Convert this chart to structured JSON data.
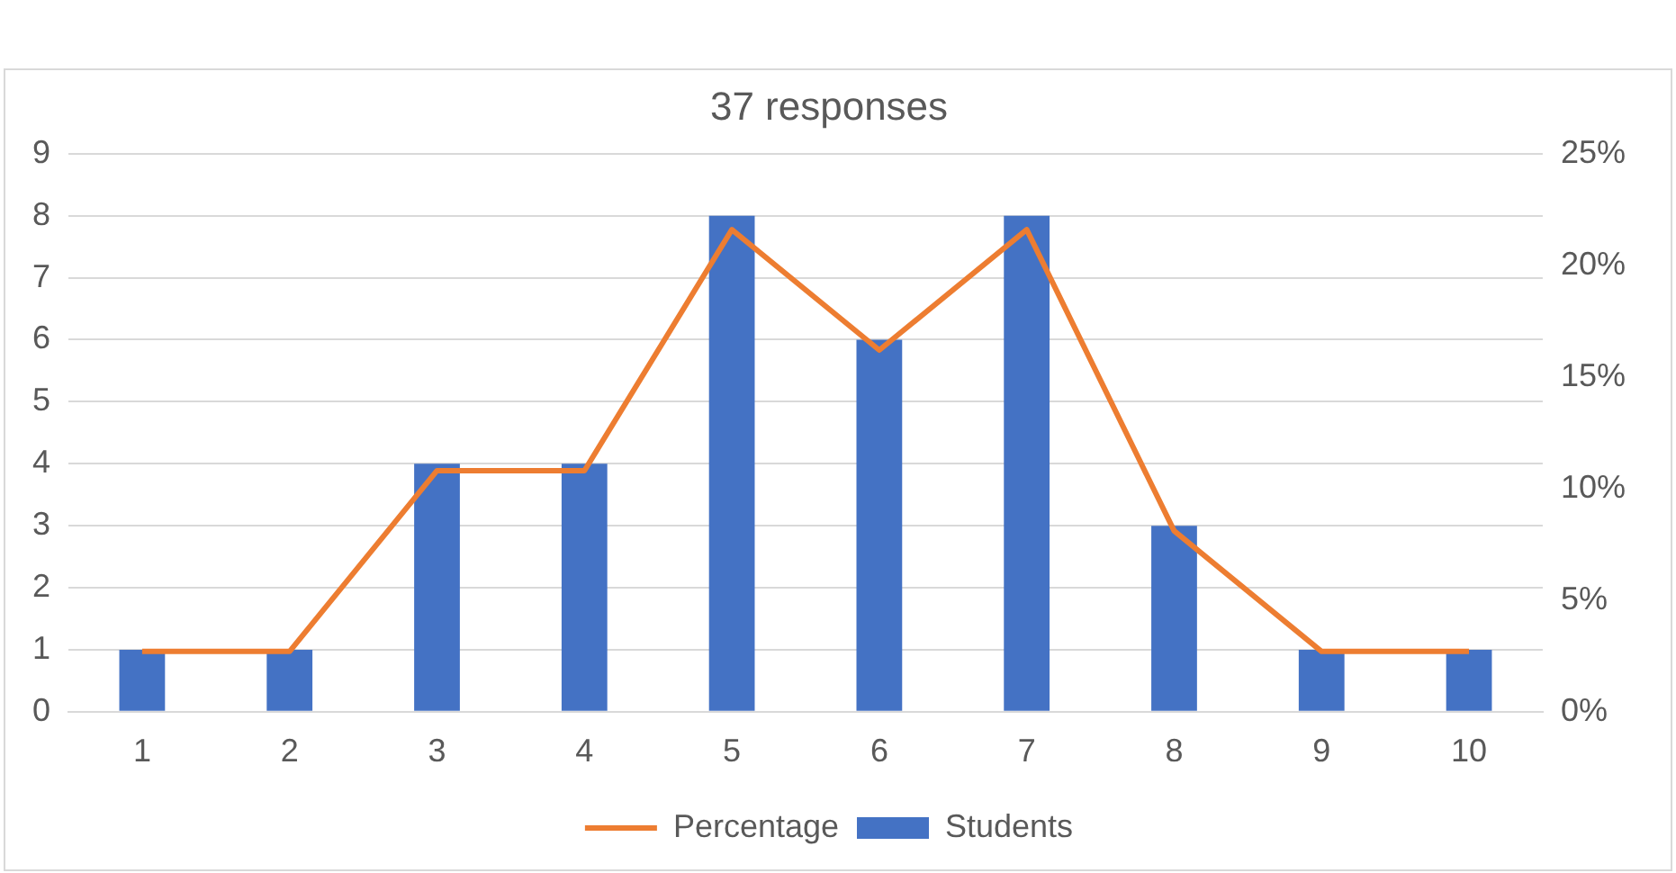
{
  "chart_data": {
    "type": "bar",
    "title": "37 responses",
    "categories": [
      "1",
      "2",
      "3",
      "4",
      "5",
      "6",
      "7",
      "8",
      "9",
      "10"
    ],
    "series": [
      {
        "name": "Students",
        "color": "#4472c4",
        "values": [
          1,
          1,
          4,
          4,
          8,
          6,
          8,
          3,
          1,
          1
        ]
      },
      {
        "name": "Percentage",
        "type": "line",
        "axis": "y2",
        "color": "#ed7d31",
        "values": [
          2.7,
          2.7,
          10.8,
          10.8,
          21.6,
          16.2,
          21.6,
          8.1,
          2.7,
          2.7
        ]
      }
    ],
    "ylim": [
      0,
      9
    ],
    "yticks": [
      0,
      1,
      2,
      3,
      4,
      5,
      6,
      7,
      8,
      9
    ],
    "y2lim": [
      0,
      25
    ],
    "y2ticks": [
      {
        "value": 0,
        "label": "0%"
      },
      {
        "value": 5,
        "label": "5%"
      },
      {
        "value": 10,
        "label": "10%"
      },
      {
        "value": 15,
        "label": "15%"
      },
      {
        "value": 20,
        "label": "20%"
      },
      {
        "value": 25,
        "label": "25%"
      }
    ],
    "grid": "y",
    "legend": "bottom",
    "marker": "none"
  }
}
